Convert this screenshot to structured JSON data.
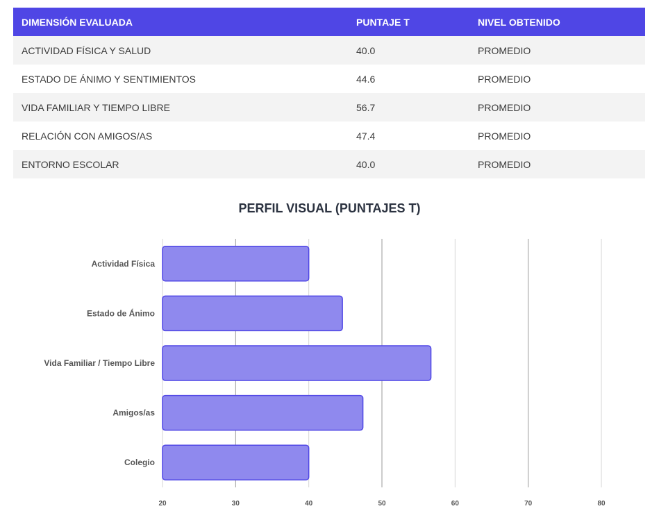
{
  "table": {
    "headers": [
      "DIMENSIÓN EVALUADA",
      "PUNTAJE T",
      "NIVEL OBTENIDO"
    ],
    "rows": [
      {
        "dimension": "ACTIVIDAD FÍSICA Y SALUD",
        "score": "40.0",
        "level": "PROMEDIO"
      },
      {
        "dimension": "ESTADO DE ÁNIMO Y SENTIMIENTOS",
        "score": "44.6",
        "level": "PROMEDIO"
      },
      {
        "dimension": "VIDA FAMILIAR Y TIEMPO LIBRE",
        "score": "56.7",
        "level": "PROMEDIO"
      },
      {
        "dimension": "RELACIÓN CON AMIGOS/AS",
        "score": "47.4",
        "level": "PROMEDIO"
      },
      {
        "dimension": "ENTORNO ESCOLAR",
        "score": "40.0",
        "level": "PROMEDIO"
      }
    ]
  },
  "colors": {
    "header_bg": "#4f46e5",
    "bar_fill": "#8f89ee",
    "bar_stroke": "#4f46e5"
  },
  "chart_data": {
    "type": "bar",
    "orientation": "horizontal",
    "title": "PERFIL VISUAL (PUNTAJES T)",
    "categories": [
      "Actividad Física",
      "Estado de Ánimo",
      "Vida Familiar / Tiempo Libre",
      "Amigos/as",
      "Colegio"
    ],
    "values": [
      40.0,
      44.6,
      56.7,
      47.4,
      40.0
    ],
    "xlim": [
      20,
      80
    ],
    "xticks": [
      20,
      30,
      40,
      50,
      60,
      70,
      80
    ],
    "xlabel": "",
    "ylabel": "",
    "grid": true
  }
}
